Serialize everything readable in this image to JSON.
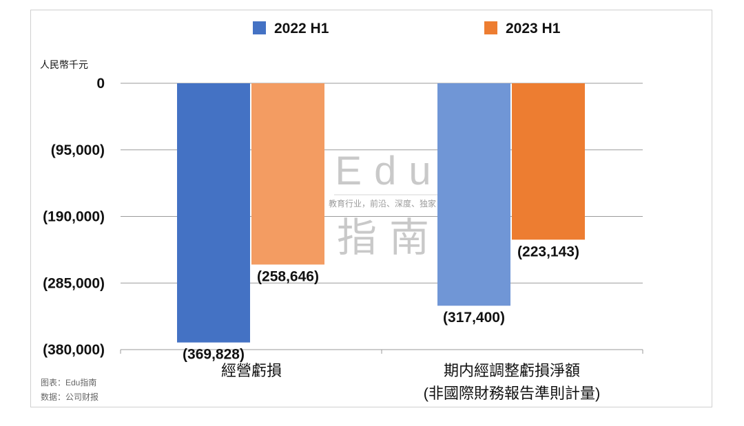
{
  "chart_data": {
    "type": "bar",
    "unit_label": "人民幣千元",
    "categories": [
      "經營虧損",
      "期内經調整虧損淨額\n(非國際財務報告準則計量)"
    ],
    "series": [
      {
        "name": "2022 H1",
        "values": [
          -369828,
          -317400
        ],
        "color": "#4472C4",
        "color_alt": "#7096D6"
      },
      {
        "name": "2023 H1",
        "values": [
          -258646,
          -223143
        ],
        "color": "#F39C62",
        "color_alt": "#ED7D31"
      }
    ],
    "data_labels": [
      [
        "(369,828)",
        "(317,400)"
      ],
      [
        "(258,646)",
        "(223,143)"
      ]
    ],
    "y_ticks": [
      0,
      -95000,
      -190000,
      -285000,
      -380000
    ],
    "y_tick_labels": [
      "0",
      "(95,000)",
      "(190,000)",
      "(285,000)",
      "(380,000)"
    ],
    "ylim": [
      -380000,
      0
    ],
    "grid": true,
    "legend_position": "top"
  },
  "watermark": {
    "big": "Edu",
    "small": "教育行业，前沿、深度、独家",
    "big2": "指南"
  },
  "source": {
    "line1": "图表：Edu指南",
    "line2": "数据：公司财报"
  }
}
